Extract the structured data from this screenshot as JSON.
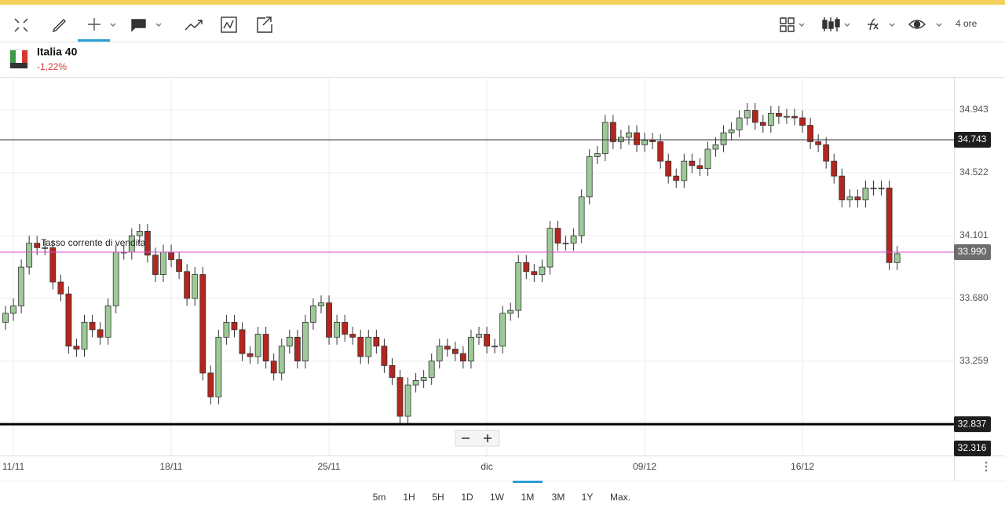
{
  "toolbar": {
    "timeframe": "4 ore"
  },
  "instrument": {
    "name": "Italia 40",
    "change": "-1,22%"
  },
  "chart_data": {
    "type": "candlestick",
    "categories": [
      null,
      "11/11",
      null,
      null,
      null,
      null,
      null,
      null,
      null,
      null,
      null,
      null,
      null,
      null,
      null,
      null,
      null,
      null,
      null,
      null,
      null,
      "18/11",
      null,
      null,
      null,
      null,
      null,
      null,
      null,
      null,
      null,
      null,
      null,
      null,
      null,
      null,
      null,
      null,
      null,
      null,
      null,
      "25/11",
      null,
      null,
      null,
      null,
      null,
      null,
      null,
      null,
      null,
      null,
      null,
      null,
      null,
      null,
      null,
      null,
      null,
      null,
      null,
      "dic",
      null,
      null,
      null,
      null,
      null,
      null,
      null,
      null,
      null,
      null,
      null,
      null,
      null,
      null,
      null,
      null,
      null,
      null,
      null,
      "09/12",
      null,
      null,
      null,
      null,
      null,
      null,
      null,
      null,
      null,
      null,
      null,
      null,
      null,
      null,
      null,
      null,
      null,
      null,
      null,
      "16/12",
      null,
      null,
      null,
      null,
      null,
      null,
      null,
      null,
      null,
      null,
      null,
      null
    ],
    "open": [
      33.52,
      33.58,
      33.63,
      33.89,
      34.05,
      34.02,
      34.02,
      33.79,
      33.71,
      33.36,
      33.34,
      33.52,
      33.47,
      33.42,
      33.63,
      33.99,
      33.99,
      34.1,
      34.13,
      33.97,
      33.84,
      33.99,
      33.94,
      33.86,
      33.68,
      33.84,
      33.18,
      33.02,
      33.42,
      33.52,
      33.47,
      33.31,
      33.29,
      33.44,
      33.26,
      33.18,
      33.36,
      33.42,
      33.26,
      33.52,
      33.63,
      33.65,
      33.42,
      33.52,
      33.44,
      33.42,
      33.29,
      33.42,
      33.36,
      33.23,
      33.15,
      32.89,
      33.1,
      33.13,
      33.15,
      33.26,
      33.36,
      33.34,
      33.31,
      33.26,
      33.42,
      33.44,
      33.36,
      33.36,
      33.58,
      33.6,
      33.92,
      33.86,
      33.84,
      33.89,
      34.15,
      34.05,
      34.05,
      34.1,
      34.36,
      34.63,
      34.65,
      34.86,
      34.73,
      34.76,
      34.79,
      34.71,
      34.74,
      34.73,
      34.6,
      34.5,
      34.47,
      34.6,
      34.57,
      34.55,
      34.68,
      34.71,
      34.79,
      34.81,
      34.89,
      34.94,
      34.86,
      34.84,
      34.92,
      34.9,
      34.9,
      34.89,
      34.84,
      34.73,
      34.71,
      34.6,
      34.5,
      34.34,
      34.36,
      34.34,
      34.42,
      34.42,
      34.42,
      33.92
    ],
    "high": [
      33.63,
      33.68,
      33.94,
      34.1,
      34.1,
      34.07,
      34.07,
      33.84,
      33.76,
      33.41,
      33.57,
      33.57,
      33.52,
      33.68,
      34.04,
      34.04,
      34.15,
      34.18,
      34.18,
      34.02,
      34.04,
      34.04,
      33.99,
      33.91,
      33.89,
      33.89,
      33.23,
      33.47,
      33.57,
      33.57,
      33.52,
      33.36,
      33.49,
      33.49,
      33.31,
      33.41,
      33.47,
      33.47,
      33.57,
      33.68,
      33.7,
      33.7,
      33.57,
      33.57,
      33.49,
      33.47,
      33.47,
      33.47,
      33.41,
      33.28,
      33.2,
      33.15,
      33.18,
      33.2,
      33.31,
      33.41,
      33.41,
      33.39,
      33.36,
      33.47,
      33.49,
      33.49,
      33.41,
      33.63,
      33.65,
      33.97,
      33.97,
      33.91,
      33.94,
      34.2,
      34.2,
      34.1,
      34.15,
      34.41,
      34.68,
      34.7,
      34.91,
      34.91,
      34.81,
      34.84,
      34.84,
      34.79,
      34.79,
      34.78,
      34.65,
      34.55,
      34.65,
      34.65,
      34.62,
      34.73,
      34.76,
      34.84,
      34.86,
      34.94,
      34.99,
      34.99,
      34.91,
      34.97,
      34.97,
      34.95,
      34.95,
      34.94,
      34.89,
      34.78,
      34.76,
      34.65,
      34.55,
      34.41,
      34.41,
      34.47,
      34.47,
      34.47,
      34.47,
      34.03
    ],
    "low": [
      33.47,
      33.53,
      33.58,
      33.84,
      33.97,
      33.97,
      33.74,
      33.66,
      33.31,
      33.29,
      33.29,
      33.42,
      33.37,
      33.37,
      33.58,
      33.94,
      33.94,
      34.05,
      33.92,
      33.79,
      33.79,
      33.89,
      33.81,
      33.63,
      33.63,
      33.13,
      32.97,
      32.97,
      33.37,
      33.42,
      33.26,
      33.24,
      33.24,
      33.21,
      33.13,
      33.13,
      33.31,
      33.21,
      33.21,
      33.47,
      33.58,
      33.37,
      33.37,
      33.39,
      33.37,
      33.24,
      33.24,
      33.31,
      33.18,
      33.1,
      32.84,
      32.84,
      33.05,
      33.08,
      33.1,
      33.21,
      33.29,
      33.26,
      33.21,
      33.21,
      33.37,
      33.31,
      33.31,
      33.31,
      33.53,
      33.55,
      33.81,
      33.79,
      33.79,
      33.84,
      34.0,
      34.0,
      34.0,
      34.05,
      34.31,
      34.58,
      34.6,
      34.68,
      34.68,
      34.71,
      34.66,
      34.66,
      34.68,
      34.55,
      34.45,
      34.42,
      34.42,
      34.52,
      34.5,
      34.5,
      34.63,
      34.66,
      34.74,
      34.76,
      34.84,
      34.81,
      34.79,
      34.79,
      34.85,
      34.85,
      34.84,
      34.79,
      34.68,
      34.66,
      34.55,
      34.45,
      34.29,
      34.29,
      34.29,
      34.29,
      34.37,
      34.37,
      33.87,
      33.87
    ],
    "close": [
      33.58,
      33.63,
      33.89,
      34.05,
      34.02,
      34.02,
      33.79,
      33.71,
      33.36,
      33.34,
      33.52,
      33.47,
      33.42,
      33.63,
      33.99,
      33.99,
      34.1,
      34.13,
      33.97,
      33.84,
      33.99,
      33.94,
      33.86,
      33.68,
      33.84,
      33.18,
      33.02,
      33.42,
      33.52,
      33.47,
      33.31,
      33.29,
      33.44,
      33.26,
      33.18,
      33.36,
      33.42,
      33.26,
      33.52,
      33.63,
      33.65,
      33.42,
      33.52,
      33.44,
      33.42,
      33.29,
      33.42,
      33.36,
      33.23,
      33.15,
      32.89,
      33.1,
      33.13,
      33.15,
      33.26,
      33.36,
      33.34,
      33.31,
      33.26,
      33.42,
      33.44,
      33.36,
      33.36,
      33.58,
      33.6,
      33.92,
      33.86,
      33.84,
      33.89,
      34.15,
      34.05,
      34.05,
      34.1,
      34.36,
      34.63,
      34.65,
      34.86,
      34.73,
      34.76,
      34.79,
      34.71,
      34.74,
      34.73,
      34.6,
      34.5,
      34.47,
      34.6,
      34.57,
      34.55,
      34.68,
      34.71,
      34.79,
      34.81,
      34.89,
      34.94,
      34.86,
      34.84,
      34.92,
      34.9,
      34.9,
      34.89,
      34.84,
      34.73,
      34.71,
      34.6,
      34.5,
      34.34,
      34.36,
      34.34,
      34.42,
      34.42,
      34.42,
      33.92,
      33.98
    ],
    "up_color": "#9dca97",
    "down_color": "#b3261e",
    "ylim": [
      32.627,
      35.164
    ],
    "yticks": [
      34.943,
      34.522,
      34.101,
      {
        "value": 33.68,
        "label": "33.680"
      },
      33.259
    ],
    "grid": true,
    "levels": [
      {
        "value": 34.743,
        "label": "34.743",
        "color": "#333333"
      },
      {
        "value": {
          "value": 33.99,
          "label": "33.990"
        },
        "color": "#d64fd0"
      },
      {
        "value": 32.837,
        "label": "32.837",
        "color": "#000000"
      }
    ],
    "annotation": "Tasso corrente di vendita",
    "offscreen_price": "32.316"
  },
  "timeframes": [
    "5m",
    "1H",
    "5H",
    "1D",
    "1W",
    "1M",
    "3M",
    "1Y",
    "Max."
  ],
  "selected_timeframe": "1M"
}
